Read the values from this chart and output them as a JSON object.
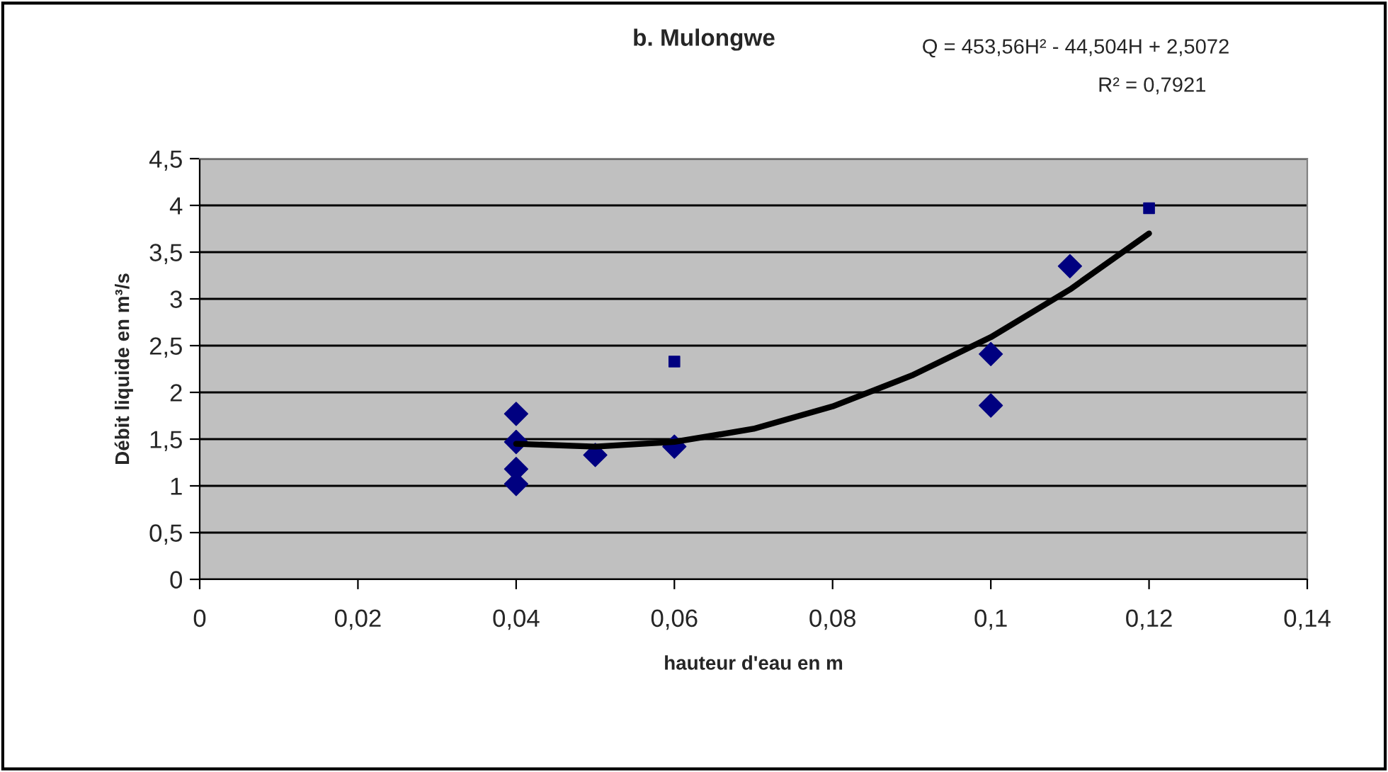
{
  "chart_data": {
    "type": "scatter",
    "title": "b. Mulongwe",
    "xlabel": "hauteur d'eau en m",
    "ylabel": "Débit liquide en m³/s",
    "annotations": [
      "Q = 453,56H² - 44,504H + 2,5072",
      "R² = 0,7921"
    ],
    "series": [
      {
        "color": "#000080",
        "marker": "diamond",
        "x": [
          0.04,
          0.04,
          0.04,
          0.04,
          0.05,
          0.06,
          0.1,
          0.1,
          0.11
        ],
        "values": [
          1.77,
          1.47,
          1.18,
          1.02,
          1.33,
          1.42,
          2.41,
          1.86,
          3.35
        ]
      },
      {
        "color": "#000080",
        "marker": "square",
        "x": [
          0.06,
          0.12
        ],
        "values": [
          2.33,
          3.97
        ]
      },
      {
        "type": "line",
        "color": "#000000",
        "x": [
          0.04,
          0.05,
          0.06,
          0.07,
          0.08,
          0.09,
          0.1,
          0.11,
          0.12
        ],
        "values": [
          1.45,
          1.42,
          1.47,
          1.61,
          1.85,
          2.18,
          2.59,
          3.1,
          3.7
        ]
      }
    ],
    "xlim": [
      0,
      0.14
    ],
    "xticks": [
      0,
      {
        "value": 0.02,
        "label": "0,02"
      },
      {
        "value": 0.04,
        "label": "0,04"
      },
      {
        "value": 0.06,
        "label": "0,06"
      },
      {
        "value": 0.08,
        "label": "0,08"
      },
      {
        "value": 0.1,
        "label": "0,1"
      },
      {
        "value": 0.12,
        "label": "0,12"
      },
      {
        "value": 0.14,
        "label": "0,14"
      }
    ],
    "ylim": [
      0,
      4.5
    ],
    "yticks": [
      0,
      {
        "value": 0.5,
        "label": "0,5"
      },
      1,
      {
        "value": 1.5,
        "label": "1,5"
      },
      2,
      {
        "value": 2.5,
        "label": "2,5"
      },
      3,
      {
        "value": 3.5,
        "label": "3,5"
      },
      4,
      {
        "value": 4.5,
        "label": "4,5"
      }
    ],
    "grid": "y",
    "legend": false
  }
}
